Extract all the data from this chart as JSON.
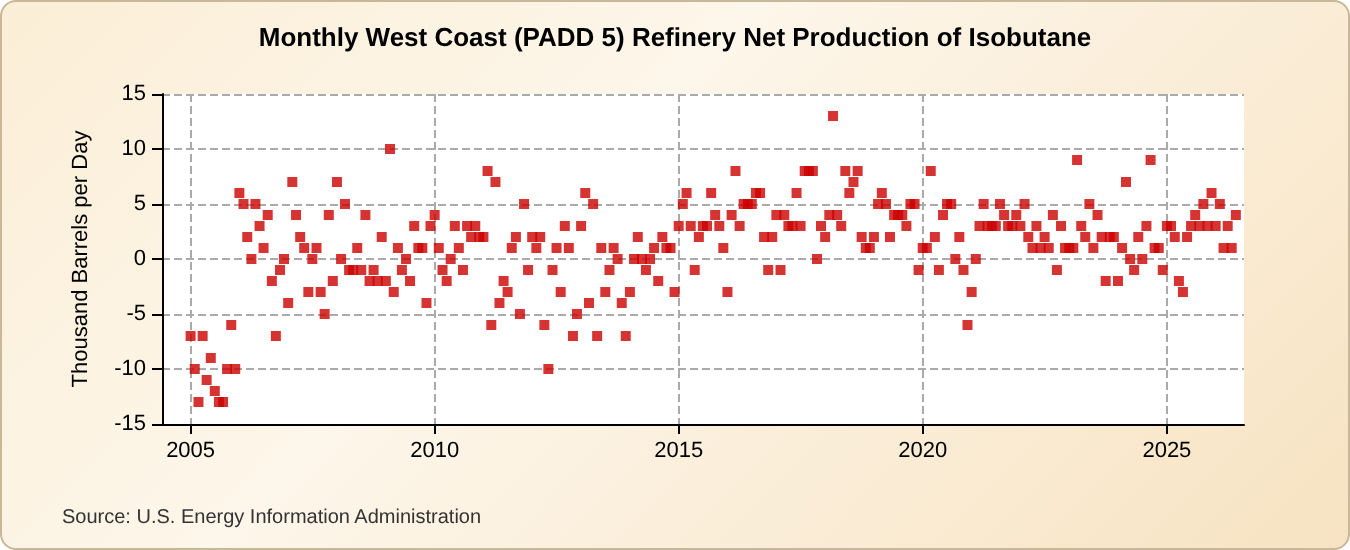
{
  "chart_data": {
    "type": "scatter",
    "title": "Monthly West Coast (PADD 5) Refinery Net Production of Isobutane",
    "ylabel": "Thousand Barrels per Day",
    "annotations": [
      "Source: U.S. Energy Information Administration"
    ],
    "x": [
      "2005-01",
      "2005-02",
      "2005-03",
      "2005-04",
      "2005-05",
      "2005-06",
      "2005-07",
      "2005-08",
      "2005-09",
      "2005-10",
      "2005-11",
      "2005-12",
      "2006-01",
      "2006-02",
      "2006-03",
      "2006-04",
      "2006-05",
      "2006-06",
      "2006-07",
      "2006-08",
      "2006-09",
      "2006-10",
      "2006-11",
      "2006-12",
      "2007-01",
      "2007-02",
      "2007-03",
      "2007-04",
      "2007-05",
      "2007-06",
      "2007-07",
      "2007-08",
      "2007-09",
      "2007-10",
      "2007-11",
      "2007-12",
      "2008-01",
      "2008-02",
      "2008-03",
      "2008-04",
      "2008-05",
      "2008-06",
      "2008-07",
      "2008-08",
      "2008-09",
      "2008-10",
      "2008-11",
      "2008-12",
      "2009-01",
      "2009-02",
      "2009-03",
      "2009-04",
      "2009-05",
      "2009-06",
      "2009-07",
      "2009-08",
      "2009-09",
      "2009-10",
      "2009-11",
      "2009-12",
      "2010-01",
      "2010-02",
      "2010-03",
      "2010-04",
      "2010-05",
      "2010-06",
      "2010-07",
      "2010-08",
      "2010-09",
      "2010-10",
      "2010-11",
      "2010-12",
      "2011-01",
      "2011-02",
      "2011-03",
      "2011-04",
      "2011-05",
      "2011-06",
      "2011-07",
      "2011-08",
      "2011-09",
      "2011-10",
      "2011-11",
      "2011-12",
      "2012-01",
      "2012-02",
      "2012-03",
      "2012-04",
      "2012-05",
      "2012-06",
      "2012-07",
      "2012-08",
      "2012-09",
      "2012-10",
      "2012-11",
      "2012-12",
      "2013-01",
      "2013-02",
      "2013-03",
      "2013-04",
      "2013-05",
      "2013-06",
      "2013-07",
      "2013-08",
      "2013-09",
      "2013-10",
      "2013-11",
      "2013-12",
      "2014-01",
      "2014-02",
      "2014-03",
      "2014-04",
      "2014-05",
      "2014-06",
      "2014-07",
      "2014-08",
      "2014-09",
      "2014-10",
      "2014-11",
      "2014-12",
      "2015-01",
      "2015-02",
      "2015-03",
      "2015-04",
      "2015-05",
      "2015-06",
      "2015-07",
      "2015-08",
      "2015-09",
      "2015-10",
      "2015-11",
      "2015-12",
      "2016-01",
      "2016-02",
      "2016-03",
      "2016-04",
      "2016-05",
      "2016-06",
      "2016-07",
      "2016-08",
      "2016-09",
      "2016-10",
      "2016-11",
      "2016-12",
      "2017-01",
      "2017-02",
      "2017-03",
      "2017-04",
      "2017-05",
      "2017-06",
      "2017-07",
      "2017-08",
      "2017-09",
      "2017-10",
      "2017-11",
      "2017-12",
      "2018-01",
      "2018-02",
      "2018-03",
      "2018-04",
      "2018-05",
      "2018-06",
      "2018-07",
      "2018-08",
      "2018-09",
      "2018-10",
      "2018-11",
      "2018-12",
      "2019-01",
      "2019-02",
      "2019-03",
      "2019-04",
      "2019-05",
      "2019-06",
      "2019-07",
      "2019-08",
      "2019-09",
      "2019-10",
      "2019-11",
      "2019-12",
      "2020-01",
      "2020-02",
      "2020-03",
      "2020-04",
      "2020-05",
      "2020-06",
      "2020-07",
      "2020-08",
      "2020-09",
      "2020-10",
      "2020-11",
      "2020-12",
      "2021-01",
      "2021-02",
      "2021-03",
      "2021-04",
      "2021-05",
      "2021-06",
      "2021-07",
      "2021-08",
      "2021-09",
      "2021-10",
      "2021-11",
      "2021-12",
      "2022-01",
      "2022-02",
      "2022-03",
      "2022-04",
      "2022-05",
      "2022-06",
      "2022-07",
      "2022-08",
      "2022-09",
      "2022-10",
      "2022-11",
      "2022-12",
      "2023-01",
      "2023-02",
      "2023-03",
      "2023-04",
      "2023-05",
      "2023-06",
      "2023-07",
      "2023-08",
      "2023-09",
      "2023-10",
      "2023-11",
      "2023-12",
      "2024-01",
      "2024-02",
      "2024-03",
      "2024-04",
      "2024-05",
      "2024-06",
      "2024-07",
      "2024-08",
      "2024-09",
      "2024-10",
      "2024-11",
      "2024-12",
      "2025-01",
      "2025-02",
      "2025-03",
      "2025-04",
      "2025-05",
      "2025-06",
      "2025-07",
      "2025-08",
      "2025-09",
      "2025-10",
      "2025-11",
      "2025-12",
      "2026-01",
      "2026-02",
      "2026-03",
      "2026-04",
      "2026-05",
      "2026-06"
    ],
    "series": [
      {
        "color": "#cc0000",
        "values": [
          -7,
          -10,
          -13,
          -7,
          -11,
          -9,
          -12,
          -13,
          -13,
          -10,
          -6,
          -10,
          6,
          5,
          2,
          0,
          5,
          3,
          1,
          4,
          -2,
          -7,
          -1,
          0,
          -4,
          7,
          4,
          2,
          1,
          -3,
          0,
          1,
          -3,
          -5,
          4,
          -2,
          7,
          0,
          5,
          -1,
          -1,
          1,
          -1,
          4,
          -2,
          -1,
          -2,
          2,
          -2,
          10,
          -3,
          1,
          -1,
          0,
          -2,
          3,
          1,
          1,
          -4,
          3,
          4,
          1,
          -1,
          -2,
          0,
          3,
          1,
          -1,
          3,
          2,
          3,
          2,
          2,
          8,
          -6,
          7,
          -4,
          -2,
          -3,
          1,
          2,
          -5,
          5,
          -1,
          2,
          1,
          2,
          -6,
          -10,
          -1,
          1,
          -3,
          3,
          1,
          -7,
          -5,
          3,
          6,
          -4,
          5,
          -7,
          1,
          -3,
          -1,
          1,
          0,
          -4,
          -7,
          -3,
          0,
          2,
          0,
          -1,
          0,
          1,
          -2,
          2,
          1,
          1,
          -3,
          3,
          5,
          6,
          3,
          -1,
          2,
          3,
          3,
          6,
          4,
          3,
          1,
          -3,
          4,
          8,
          3,
          5,
          5,
          5,
          6,
          6,
          2,
          -1,
          2,
          4,
          -1,
          4,
          3,
          3,
          6,
          3,
          8,
          8,
          8,
          0,
          3,
          2,
          4,
          13,
          4,
          3,
          8,
          6,
          7,
          8,
          2,
          1,
          1,
          2,
          5,
          6,
          5,
          2,
          4,
          4,
          4,
          3,
          5,
          5,
          -1,
          1,
          1,
          8,
          2,
          -1,
          4,
          5,
          5,
          0,
          2,
          -1,
          -6,
          -3,
          0,
          3,
          5,
          3,
          3,
          3,
          5,
          4,
          3,
          3,
          4,
          3,
          5,
          2,
          1,
          3,
          1,
          2,
          1,
          4,
          -1,
          3,
          1,
          1,
          1,
          9,
          3,
          2,
          5,
          1,
          4,
          2,
          -2,
          2,
          2,
          -2,
          1,
          7,
          0,
          -1,
          2,
          0,
          3,
          9,
          1,
          1,
          -1,
          3,
          3,
          2,
          -2,
          -3,
          2,
          3,
          4,
          3,
          5,
          3,
          6,
          3,
          5,
          1,
          3,
          1,
          4
        ]
      }
    ],
    "xlim": [
      "2004-06",
      "2026-08"
    ],
    "xticks": [
      "2005",
      "2010",
      "2015",
      "2020",
      "2025"
    ],
    "ylim": [
      -15,
      15
    ],
    "yticks": [
      -15,
      -10,
      -5,
      0,
      5,
      10,
      15
    ],
    "grid": true,
    "marker": "square"
  }
}
